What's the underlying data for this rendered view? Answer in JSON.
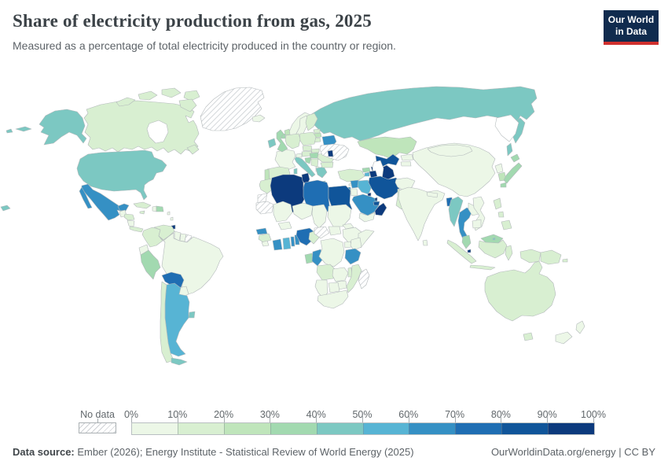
{
  "header": {
    "title": "Share of electricity production from gas, 2025",
    "subtitle": "Measured as a percentage of total electricity produced in the country or region."
  },
  "logo": {
    "line1": "Our World",
    "line2": "in Data",
    "bg": "#102b4e",
    "stripe": "#d0302e"
  },
  "legend": {
    "no_data_label": "No data",
    "tick_labels": [
      "0%",
      "10%",
      "20%",
      "30%",
      "40%",
      "50%",
      "60%",
      "70%",
      "80%",
      "90%",
      "100%"
    ],
    "bin_ranges": [
      "0-10%",
      "10-20%",
      "20-30%",
      "30-40%",
      "40-50%",
      "50-60%",
      "60-70%",
      "70-80%",
      "80-90%",
      "90-100%"
    ],
    "colors": [
      "#ecf7e7",
      "#d8efd1",
      "#bfe5bb",
      "#a2d9b0",
      "#7cc8c2",
      "#57b4d4",
      "#3590c4",
      "#1f6eb3",
      "#10559a",
      "#0c3a7d"
    ],
    "no_data_fill": "hatched",
    "border_color": "#b3b9bb"
  },
  "footer": {
    "source_label": "Data source:",
    "source_text": " Ember (2026); Energy Institute - Statistical Review of World Energy (2025)",
    "credit": "OurWorldinData.org/energy | CC BY"
  },
  "chart_data": {
    "type": "choropleth",
    "title": "Share of electricity production from gas, 2025",
    "unit": "%",
    "legend_bins": [
      "0-10%",
      "10-20%",
      "20-30%",
      "30-40%",
      "40-50%",
      "50-60%",
      "60-70%",
      "70-80%",
      "80-90%",
      "90-100%",
      "No data"
    ],
    "regions": [
      {
        "name": "Greenland",
        "bin": "No data"
      },
      {
        "name": "Canada",
        "bin": "10-20%"
      },
      {
        "name": "United States",
        "bin": "40-50%"
      },
      {
        "name": "Mexico",
        "bin": "60-70%"
      },
      {
        "name": "Guatemala",
        "bin": "0-10%"
      },
      {
        "name": "Honduras",
        "bin": "10-20%"
      },
      {
        "name": "Nicaragua",
        "bin": "0-10%"
      },
      {
        "name": "Costa Rica and Panama",
        "bin": "10-20%"
      },
      {
        "name": "Cuba",
        "bin": "10-20%"
      },
      {
        "name": "Jamaica",
        "bin": "10-20%"
      },
      {
        "name": "Haiti",
        "bin": "0-10%"
      },
      {
        "name": "Dominican Republic",
        "bin": "30-40%"
      },
      {
        "name": "Lesser Antilles",
        "bin": "0-10%"
      },
      {
        "name": "Trinidad and Tobago",
        "bin": "90-100%"
      },
      {
        "name": "Colombia",
        "bin": "10-20%"
      },
      {
        "name": "Venezuela",
        "bin": "10-20%"
      },
      {
        "name": "Guyana",
        "bin": "0-10%"
      },
      {
        "name": "Suriname",
        "bin": "0-10%"
      },
      {
        "name": "French Guiana",
        "bin": "No data"
      },
      {
        "name": "Ecuador",
        "bin": "0-10%"
      },
      {
        "name": "Peru",
        "bin": "30-40%"
      },
      {
        "name": "Brazil",
        "bin": "0-10%"
      },
      {
        "name": "Bolivia",
        "bin": "70-80%"
      },
      {
        "name": "Paraguay",
        "bin": "0-10%"
      },
      {
        "name": "Uruguay",
        "bin": "40-50%"
      },
      {
        "name": "Chile",
        "bin": "10-20%"
      },
      {
        "name": "Argentina",
        "bin": "50-60%"
      },
      {
        "name": "Tierra del Fuego",
        "bin": "40-50%"
      },
      {
        "name": "Iceland",
        "bin": "0-10%"
      },
      {
        "name": "Ireland",
        "bin": "40-50%"
      },
      {
        "name": "United Kingdom",
        "bin": "30-40%"
      },
      {
        "name": "Norway",
        "bin": "0-10%"
      },
      {
        "name": "Sweden",
        "bin": "0-10%"
      },
      {
        "name": "Finland",
        "bin": "10-20%"
      },
      {
        "name": "Estonia",
        "bin": "10-20%"
      },
      {
        "name": "Latvia",
        "bin": "20-30%"
      },
      {
        "name": "Lithuania",
        "bin": "10-20%"
      },
      {
        "name": "Denmark",
        "bin": "20-30%"
      },
      {
        "name": "Germany",
        "bin": "10-20%"
      },
      {
        "name": "Netherlands",
        "bin": "30-40%"
      },
      {
        "name": "France",
        "bin": "0-10%"
      },
      {
        "name": "Spain",
        "bin": "10-20%"
      },
      {
        "name": "Portugal",
        "bin": "20-30%"
      },
      {
        "name": "Italy",
        "bin": "40-50%"
      },
      {
        "name": "Switzerland",
        "bin": "0-10%"
      },
      {
        "name": "Austria",
        "bin": "10-20%"
      },
      {
        "name": "Poland",
        "bin": "10-20%"
      },
      {
        "name": "Czechia",
        "bin": "10-20%"
      },
      {
        "name": "Slovakia",
        "bin": "10-20%"
      },
      {
        "name": "Hungary",
        "bin": "30-40%"
      },
      {
        "name": "Croatia",
        "bin": "30-40%"
      },
      {
        "name": "Serbia",
        "bin": "10-20%"
      },
      {
        "name": "Albania",
        "bin": "0-10%"
      },
      {
        "name": "Greece",
        "bin": "40-50%"
      },
      {
        "name": "Romania",
        "bin": "10-20%"
      },
      {
        "name": "Bulgaria",
        "bin": "10-20%"
      },
      {
        "name": "Belarus",
        "bin": "60-70%"
      },
      {
        "name": "Ukraine",
        "bin": "No data"
      },
      {
        "name": "Moldova",
        "bin": "90-100%"
      },
      {
        "name": "Russia",
        "bin": "40-50%"
      },
      {
        "name": "Kazakhstan",
        "bin": "20-30%"
      },
      {
        "name": "Uzbekistan",
        "bin": "80-90%"
      },
      {
        "name": "Turkmenistan",
        "bin": "90-100%"
      },
      {
        "name": "Kyrgyzstan",
        "bin": "0-10%"
      },
      {
        "name": "Tajikistan",
        "bin": "0-10%"
      },
      {
        "name": "Afghanistan",
        "bin": "0-10%"
      },
      {
        "name": "Pakistan",
        "bin": "10-20%"
      },
      {
        "name": "Turkey",
        "bin": "10-20%"
      },
      {
        "name": "Cyprus",
        "bin": "0-10%"
      },
      {
        "name": "Georgia",
        "bin": "30-40%"
      },
      {
        "name": "Armenia",
        "bin": "50-60%"
      },
      {
        "name": "Azerbaijan",
        "bin": "90-100%"
      },
      {
        "name": "Syria",
        "bin": "60-70%"
      },
      {
        "name": "Israel",
        "bin": "60-70%"
      },
      {
        "name": "Jordan",
        "bin": "0-10%"
      },
      {
        "name": "Iraq",
        "bin": "50-60%"
      },
      {
        "name": "Iran",
        "bin": "80-90%"
      },
      {
        "name": "Saudi Arabia",
        "bin": "60-70%"
      },
      {
        "name": "Yemen",
        "bin": "0-10%"
      },
      {
        "name": "Oman",
        "bin": "90-100%"
      },
      {
        "name": "United Arab Emirates",
        "bin": "80-90%"
      },
      {
        "name": "Qatar",
        "bin": "90-100%"
      },
      {
        "name": "Kuwait",
        "bin": "90-100%"
      },
      {
        "name": "Morocco",
        "bin": "10-20%"
      },
      {
        "name": "Western Sahara",
        "bin": "No data"
      },
      {
        "name": "Algeria",
        "bin": "90-100%"
      },
      {
        "name": "Tunisia",
        "bin": "90-100%"
      },
      {
        "name": "Libya",
        "bin": "70-80%"
      },
      {
        "name": "Egypt",
        "bin": "80-90%"
      },
      {
        "name": "Mauritania",
        "bin": "No data"
      },
      {
        "name": "Mali",
        "bin": "0-10%"
      },
      {
        "name": "Niger",
        "bin": "0-10%"
      },
      {
        "name": "Chad",
        "bin": "0-10%"
      },
      {
        "name": "Sudan",
        "bin": "0-10%"
      },
      {
        "name": "South Sudan",
        "bin": "0-10%"
      },
      {
        "name": "Eritrea",
        "bin": "0-10%"
      },
      {
        "name": "Ethiopia",
        "bin": "0-10%"
      },
      {
        "name": "Somalia",
        "bin": "0-10%"
      },
      {
        "name": "Senegal",
        "bin": "60-70%"
      },
      {
        "name": "Guinea",
        "bin": "10-20%"
      },
      {
        "name": "Sierra Leone",
        "bin": "0-10%"
      },
      {
        "name": "Burkina Faso",
        "bin": "0-10%"
      },
      {
        "name": "Côte d'Ivoire",
        "bin": "60-70%"
      },
      {
        "name": "Ghana",
        "bin": "50-60%"
      },
      {
        "name": "Togo",
        "bin": "60-70%"
      },
      {
        "name": "Benin",
        "bin": "60-70%"
      },
      {
        "name": "Nigeria",
        "bin": "70-80%"
      },
      {
        "name": "Cameroon",
        "bin": "10-20%"
      },
      {
        "name": "Central African Republic",
        "bin": "No data"
      },
      {
        "name": "Gabon",
        "bin": "30-40%"
      },
      {
        "name": "Congo",
        "bin": "60-70%"
      },
      {
        "name": "Democratic Republic of Congo",
        "bin": "0-10%"
      },
      {
        "name": "Uganda",
        "bin": "0-10%"
      },
      {
        "name": "Kenya",
        "bin": "0-10%"
      },
      {
        "name": "Tanzania",
        "bin": "60-70%"
      },
      {
        "name": "Angola",
        "bin": "10-20%"
      },
      {
        "name": "Zambia",
        "bin": "0-10%"
      },
      {
        "name": "Malawi",
        "bin": "10-20%"
      },
      {
        "name": "Mozambique",
        "bin": "10-20%"
      },
      {
        "name": "Zimbabwe",
        "bin": "0-10%"
      },
      {
        "name": "Botswana",
        "bin": "0-10%"
      },
      {
        "name": "Namibia",
        "bin": "0-10%"
      },
      {
        "name": "South Africa",
        "bin": "0-10%"
      },
      {
        "name": "Madagascar",
        "bin": "No data"
      },
      {
        "name": "India",
        "bin": "0-10%"
      },
      {
        "name": "Sri Lanka",
        "bin": "0-10%"
      },
      {
        "name": "Nepal",
        "bin": "0-10%"
      },
      {
        "name": "Bangladesh",
        "bin": "70-80%"
      },
      {
        "name": "China",
        "bin": "0-10%"
      },
      {
        "name": "Hainan",
        "bin": "0-10%"
      },
      {
        "name": "Mongolia",
        "bin": "0-10%"
      },
      {
        "name": "North Korea",
        "bin": "0-10%"
      },
      {
        "name": "South Korea",
        "bin": "20-30%"
      },
      {
        "name": "Japan",
        "bin": "30-40%"
      },
      {
        "name": "Taiwan",
        "bin": "40-50%"
      },
      {
        "name": "Myanmar",
        "bin": "40-50%"
      },
      {
        "name": "Thailand",
        "bin": "60-70%"
      },
      {
        "name": "Laos",
        "bin": "0-10%"
      },
      {
        "name": "Vietnam",
        "bin": "0-10%"
      },
      {
        "name": "Cambodia",
        "bin": "0-10%"
      },
      {
        "name": "Malaysia",
        "bin": "30-40%"
      },
      {
        "name": "Singapore",
        "bin": "90-100%"
      },
      {
        "name": "Brunei",
        "bin": "40-50%"
      },
      {
        "name": "Indonesia",
        "bin": "10-20%"
      },
      {
        "name": "Philippines",
        "bin": "10-20%"
      },
      {
        "name": "Papua New Guinea",
        "bin": "10-20%"
      },
      {
        "name": "Australia",
        "bin": "10-20%"
      },
      {
        "name": "New Zealand",
        "bin": "0-10%"
      }
    ]
  }
}
